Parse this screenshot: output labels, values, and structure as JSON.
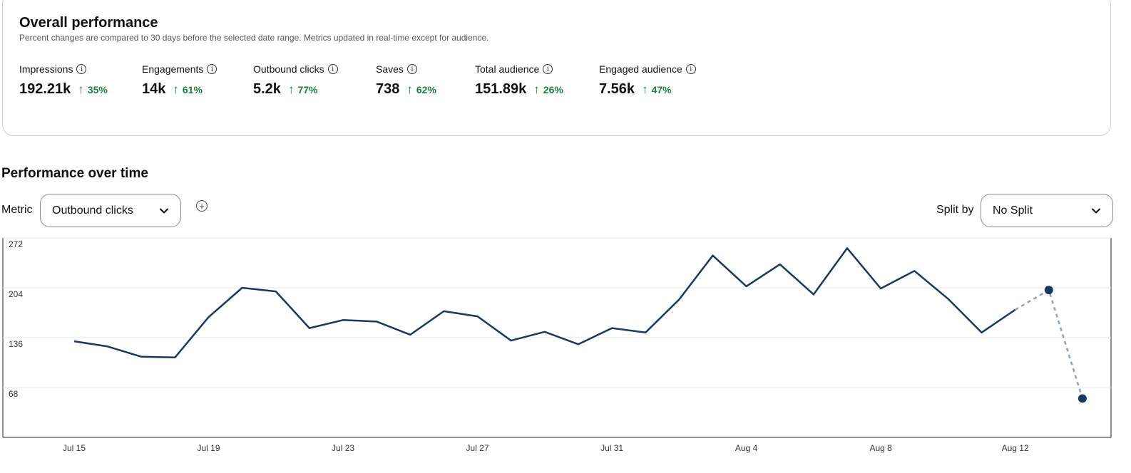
{
  "overview": {
    "title": "Overall performance",
    "subtitle": "Percent changes are compared to 30 days before the selected date range. Metrics updated in real-time except for audience.",
    "metrics": [
      {
        "label": "Impressions",
        "value": "192.21k",
        "change": "35%"
      },
      {
        "label": "Engagements",
        "value": "14k",
        "change": "61%"
      },
      {
        "label": "Outbound clicks",
        "value": "5.2k",
        "change": "77%"
      },
      {
        "label": "Saves",
        "value": "738",
        "change": "62%"
      },
      {
        "label": "Total audience",
        "value": "151.89k",
        "change": "26%"
      },
      {
        "label": "Engaged audience",
        "value": "7.56k",
        "change": "47%"
      }
    ],
    "info_icon": "info-icon",
    "trend_icon": "arrow-up-icon",
    "trend_color": "#1b7f3b"
  },
  "performance": {
    "title": "Performance over time",
    "metric_label": "Metric",
    "metric_selected": "Outbound clicks",
    "split_label": "Split by",
    "split_selected": "No Split",
    "add_icon": "plus-circle-icon"
  },
  "chart_data": {
    "type": "line",
    "title": "",
    "xlabel": "",
    "ylabel": "",
    "line_color": "#173a5e",
    "estimate_color": "#8ea3b8",
    "ylim": [
      0,
      272
    ],
    "yticks": [
      68,
      136,
      204,
      272
    ],
    "xticks": [
      "Jul 15",
      "Jul 19",
      "Jul 23",
      "Jul 27",
      "Jul 31",
      "Aug 4",
      "Aug 8",
      "Aug 12"
    ],
    "x": [
      "Jul 15",
      "Jul 16",
      "Jul 17",
      "Jul 18",
      "Jul 19",
      "Jul 20",
      "Jul 21",
      "Jul 22",
      "Jul 23",
      "Jul 24",
      "Jul 25",
      "Jul 26",
      "Jul 27",
      "Jul 28",
      "Jul 29",
      "Jul 30",
      "Jul 31",
      "Aug 1",
      "Aug 2",
      "Aug 3",
      "Aug 4",
      "Aug 5",
      "Aug 6",
      "Aug 7",
      "Aug 8",
      "Aug 9",
      "Aug 10",
      "Aug 11",
      "Aug 12",
      "Aug 13",
      "Aug 14"
    ],
    "series": [
      {
        "name": "Outbound clicks",
        "values": [
          131,
          124,
          110,
          109,
          164,
          204,
          199,
          149,
          160,
          158,
          140,
          172,
          165,
          132,
          144,
          127,
          149,
          143,
          188,
          248,
          206,
          236,
          195,
          258,
          203,
          227,
          189,
          143,
          174,
          null,
          null
        ]
      },
      {
        "name": "Outbound clicks (partial)",
        "style": "dashed",
        "values": [
          null,
          null,
          null,
          null,
          null,
          null,
          null,
          null,
          null,
          null,
          null,
          null,
          null,
          null,
          null,
          null,
          null,
          null,
          null,
          null,
          null,
          null,
          null,
          null,
          null,
          null,
          null,
          null,
          174,
          201,
          53
        ]
      }
    ],
    "markers": [
      {
        "x": "Aug 13",
        "y": 201
      },
      {
        "x": "Aug 14",
        "y": 53
      }
    ]
  }
}
